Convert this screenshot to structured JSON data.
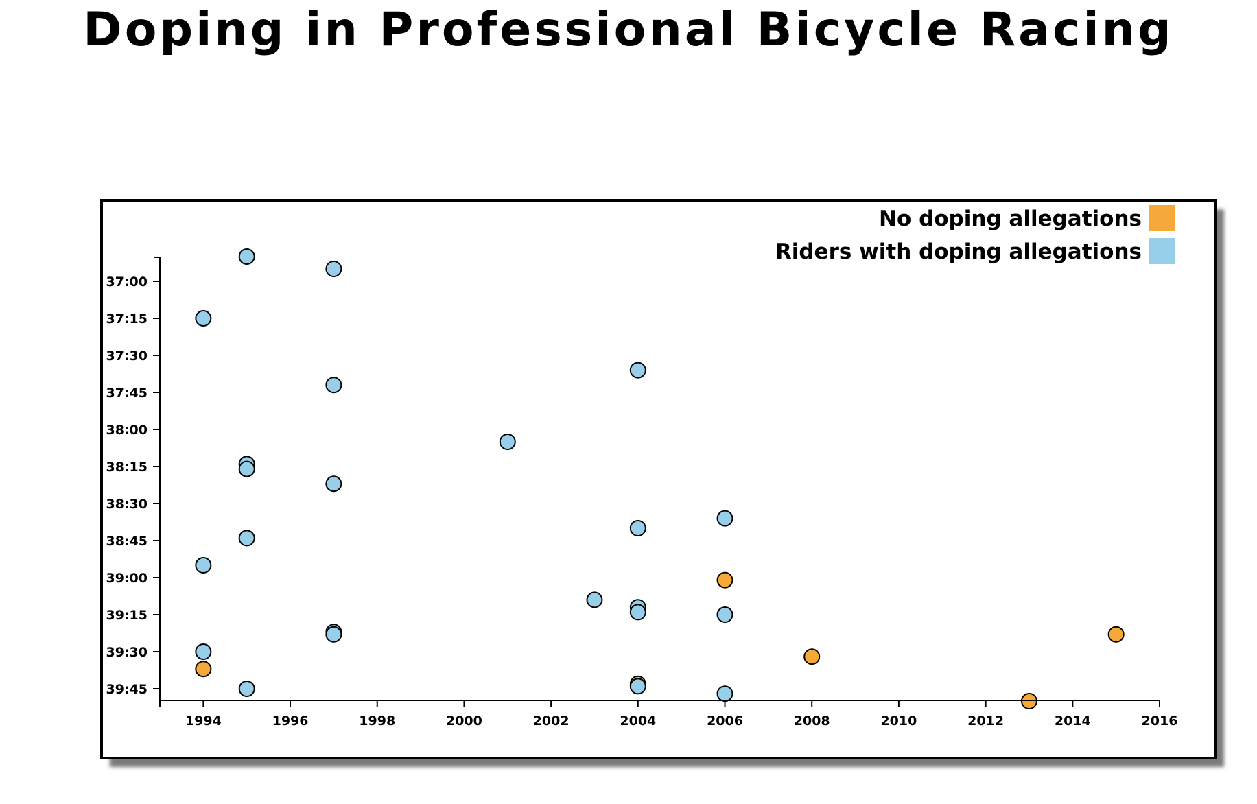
{
  "title": "Doping in Professional Bicycle Racing",
  "colors": {
    "no_doping": "#f4a93a",
    "doping": "#97cee9",
    "frame": "#000000",
    "shadow": "#7a7a7a"
  },
  "chart_data": {
    "type": "scatter",
    "title": "Doping in Professional Bicycle Racing",
    "xlabel": "",
    "ylabel": "",
    "xlim": [
      1993,
      2016
    ],
    "ylim_seconds": [
      2210,
      2390
    ],
    "y_reversed": true,
    "grid": false,
    "legend_position": "top-right",
    "x_ticks": [
      "1994",
      "1996",
      "1998",
      "2000",
      "2002",
      "2004",
      "2006",
      "2008",
      "2010",
      "2012",
      "2014",
      "2016"
    ],
    "y_ticks": [
      "37:00",
      "37:15",
      "37:30",
      "37:45",
      "38:00",
      "38:15",
      "38:30",
      "38:45",
      "39:00",
      "39:15",
      "39:30",
      "39:45"
    ],
    "y_tick_labels_visible": [
      "7:00",
      "37:15",
      "7:30",
      "37:45",
      "8:00",
      "38:15",
      "8:30",
      "8:45",
      "9:00",
      "39:15",
      "9:30",
      "9:45"
    ],
    "series": [
      {
        "name": "No doping allegations",
        "color": "#f4a93a",
        "points": [
          {
            "x": 1994,
            "y": "39:37"
          },
          {
            "x": 2004,
            "y": "39:43"
          },
          {
            "x": 2006,
            "y": "39:01"
          },
          {
            "x": 2008,
            "y": "39:32"
          },
          {
            "x": 2013,
            "y": "39:50"
          },
          {
            "x": 2015,
            "y": "39:23"
          }
        ]
      },
      {
        "name": "Riders with doping allegations",
        "color": "#97cee9",
        "points": [
          {
            "x": 1995,
            "y": "36:50"
          },
          {
            "x": 1997,
            "y": "36:55"
          },
          {
            "x": 1994,
            "y": "37:15"
          },
          {
            "x": 2004,
            "y": "37:36"
          },
          {
            "x": 1997,
            "y": "37:42"
          },
          {
            "x": 2001,
            "y": "38:05"
          },
          {
            "x": 1995,
            "y": "38:14"
          },
          {
            "x": 1995,
            "y": "38:16"
          },
          {
            "x": 1997,
            "y": "38:22"
          },
          {
            "x": 2006,
            "y": "38:36"
          },
          {
            "x": 2004,
            "y": "38:40"
          },
          {
            "x": 1995,
            "y": "38:44"
          },
          {
            "x": 1994,
            "y": "38:55"
          },
          {
            "x": 2003,
            "y": "39:09"
          },
          {
            "x": 2004,
            "y": "39:12"
          },
          {
            "x": 2004,
            "y": "39:14"
          },
          {
            "x": 2006,
            "y": "39:15"
          },
          {
            "x": 1997,
            "y": "39:22"
          },
          {
            "x": 1997,
            "y": "39:23"
          },
          {
            "x": 1994,
            "y": "39:30"
          },
          {
            "x": 2004,
            "y": "39:44"
          },
          {
            "x": 1995,
            "y": "39:45"
          },
          {
            "x": 2006,
            "y": "39:47"
          }
        ]
      }
    ]
  },
  "legend": {
    "items": [
      {
        "label": "No doping allegations",
        "color": "#f4a93a"
      },
      {
        "label": "Riders with doping allegations",
        "color": "#97cee9"
      }
    ]
  }
}
